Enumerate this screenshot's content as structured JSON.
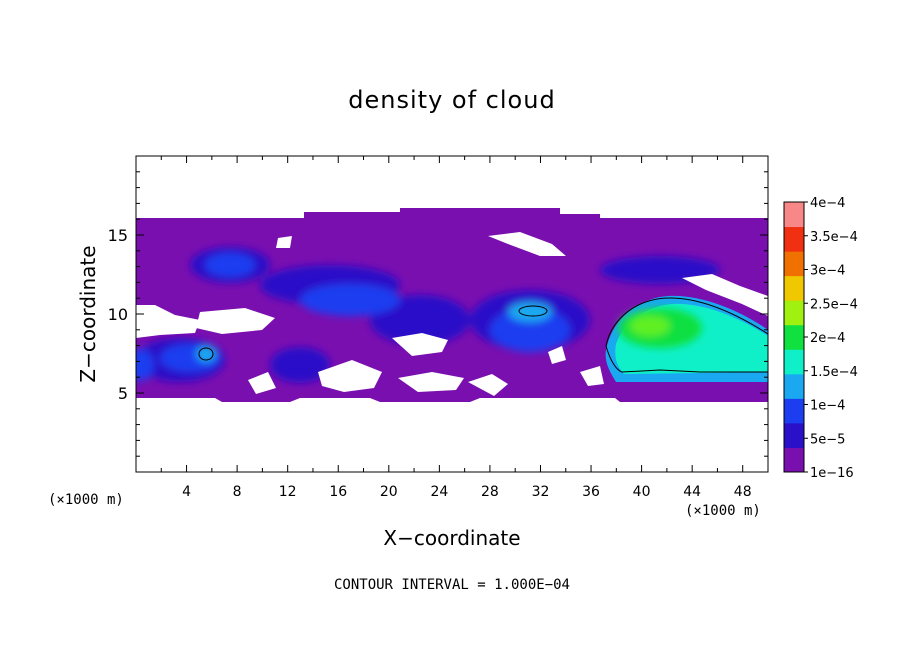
{
  "chart_data": {
    "type": "heatmap",
    "title": "density of cloud",
    "xlabel": "X−coordinate",
    "ylabel": "Z−coordinate",
    "x_unit": "(×1000 m)",
    "z_unit": "(×1000 m)",
    "xlim": [
      0,
      50
    ],
    "ylim": [
      0,
      20
    ],
    "x_ticks": [
      4,
      8,
      12,
      16,
      20,
      24,
      28,
      32,
      36,
      40,
      44,
      48
    ],
    "y_ticks": [
      5,
      10,
      15
    ],
    "contour_interval_text": "CONTOUR INTERVAL = 1.000E−04",
    "colorbar": {
      "labels": [
        "1e−16",
        "5e−5",
        "1e−4",
        "1.5e−4",
        "2e−4",
        "2.5e−4",
        "3e−4",
        "3.5e−4",
        "4e−4"
      ],
      "colors": [
        "#7a0fb0",
        "#2a10c8",
        "#1c3df0",
        "#1aa8f0",
        "#10f0c8",
        "#10e040",
        "#a0f010",
        "#f0c800",
        "#f07000",
        "#f03010",
        "#f88888"
      ]
    },
    "cloud_layer_z": [
      4.5,
      16.0
    ],
    "features": [
      {
        "x": 5.6,
        "z": 7.5,
        "value": 0.0001
      },
      {
        "x": 31.5,
        "z": 10.2,
        "value": 0.0001
      },
      {
        "x": 42,
        "z": 9.0,
        "value": 0.00018
      }
    ]
  }
}
